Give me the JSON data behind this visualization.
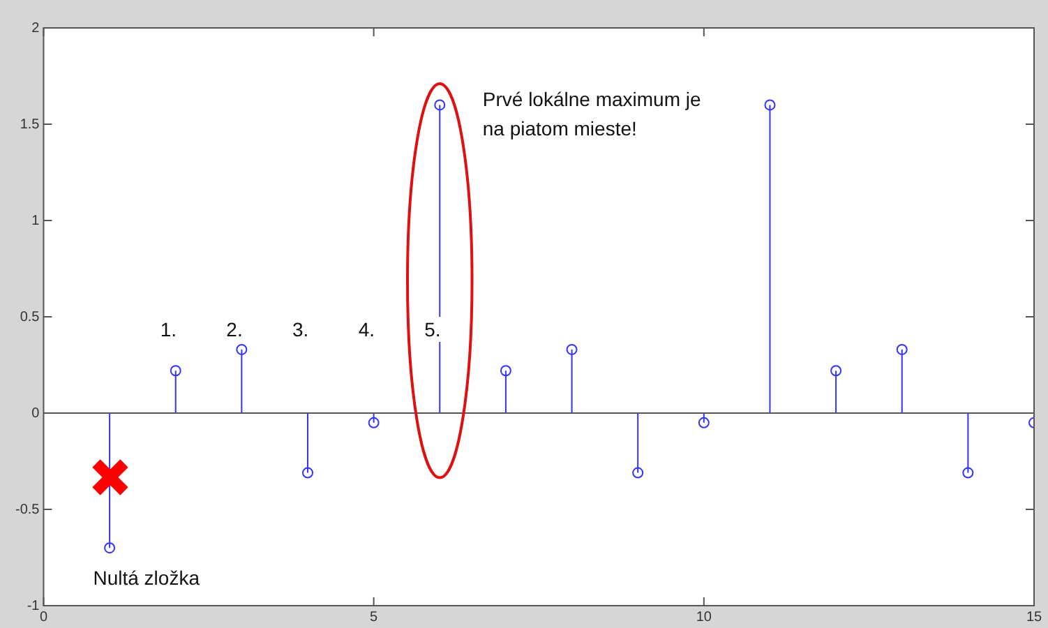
{
  "chart_data": {
    "type": "lollipop",
    "x": [
      1,
      2,
      3,
      4,
      5,
      6,
      7,
      8,
      9,
      10,
      11,
      12,
      13,
      14,
      15
    ],
    "values": [
      -0.7,
      0.22,
      0.33,
      -0.31,
      -0.05,
      1.6,
      0.22,
      0.33,
      -0.31,
      -0.05,
      1.6,
      0.22,
      0.33,
      -0.31,
      -0.05
    ],
    "color": "#3333ff",
    "marker": "circle",
    "xlim": [
      0,
      15
    ],
    "xticks": [
      0,
      5,
      10,
      15
    ],
    "ylim": [
      -1,
      2
    ],
    "yticks": [
      -1,
      -0.5,
      0,
      0.5,
      1,
      1.5,
      2
    ],
    "ref_lines": [
      {
        "axis": "y",
        "value": 0,
        "color": "#555555"
      }
    ],
    "annotations": [
      "1.",
      "2.",
      "3.",
      "4.",
      "5.",
      "Prvé lokálne maximum je na piatom mieste!",
      "Nultá zložka"
    ]
  }
}
